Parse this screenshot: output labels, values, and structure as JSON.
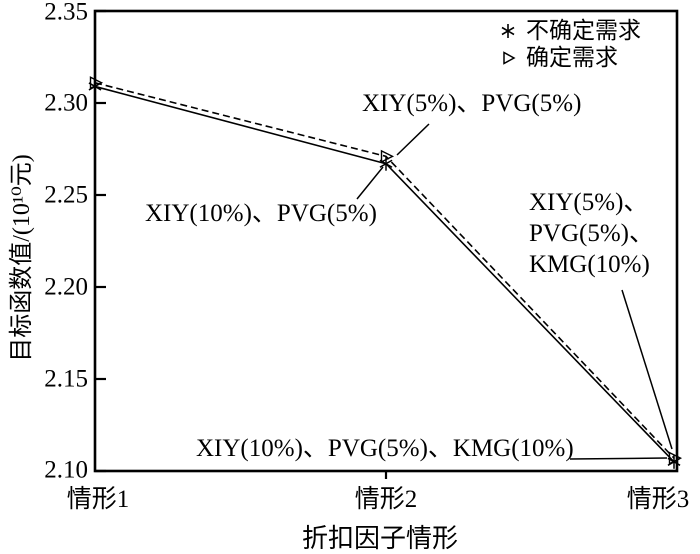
{
  "figure": {
    "background_color": "#ffffff",
    "ink_color": "#000000"
  },
  "chart_data": {
    "type": "line",
    "title": "",
    "xlabel": "折扣因子情形",
    "ylabel": "目标函数值/(10¹⁰元)",
    "categories": [
      "情形1",
      "情形2",
      "情形3"
    ],
    "y_ticks": [
      "2.35",
      "2.30",
      "2.25",
      "2.20",
      "2.15",
      "2.10"
    ],
    "ylim": [
      2.1,
      2.35
    ],
    "grid": false,
    "legend_position": "top-right-inside",
    "series": [
      {
        "name": "不确定需求",
        "marker": "asterisk",
        "line_style": "solid",
        "values": [
          2.309,
          2.267,
          2.105
        ]
      },
      {
        "name": "确定需求",
        "marker": "open-right-triangle",
        "line_style": "dashed",
        "values": [
          2.311,
          2.271,
          2.107
        ]
      }
    ],
    "annotations": [
      {
        "id": "ann-top",
        "text": "XIY(5%)、PVG(5%)",
        "target_category": "情形2"
      },
      {
        "id": "ann-left",
        "text": "XIY(10%)、PVG(5%)",
        "target_category": "情形2"
      },
      {
        "id": "ann-right",
        "text": "XIY(5%)、\nPVG(5%)、\nKMG(10%)",
        "target_category": "情形3"
      },
      {
        "id": "ann-bottom",
        "text": "XIY(10%)、PVG(5%)、KMG(10%)",
        "target_category": "情形3"
      }
    ]
  }
}
